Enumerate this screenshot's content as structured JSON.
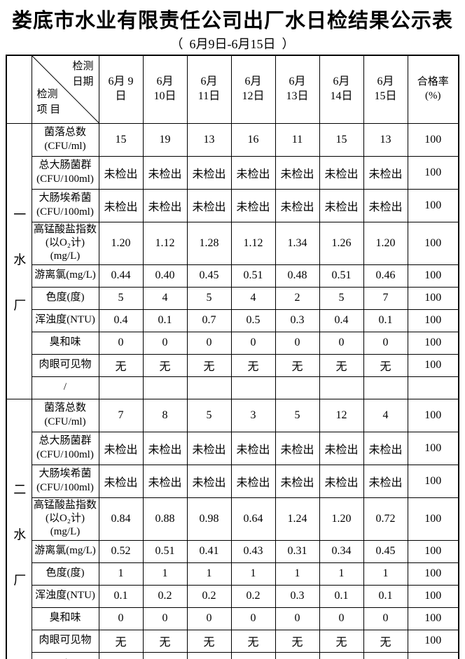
{
  "page": {
    "title": "娄底市水业有限责任公司出厂水日检结果公示表",
    "subtitle": "（  6月9日-6月15日  ）"
  },
  "table": {
    "corner_top": "检测\n日期",
    "corner_bottom": "检测\n项 目",
    "date_headers": [
      "6月 9\n日",
      "6月\n10日",
      "6月\n11日",
      "6月\n12日",
      "6月\n13日",
      "6月\n14日",
      "6月\n15日"
    ],
    "rate_header": "合格率\n(%)",
    "sections": [
      {
        "plant": "一水厂",
        "rows": [
          {
            "label": "菌落总数\n(CFU/ml)",
            "values": [
              "15",
              "19",
              "13",
              "16",
              "11",
              "15",
              "13"
            ],
            "rate": "100"
          },
          {
            "label": "总大肠菌群\n(CFU/100ml)",
            "values": [
              "未检出",
              "未检出",
              "未检出",
              "未检出",
              "未检出",
              "未检出",
              "未检出"
            ],
            "rate": "100"
          },
          {
            "label": "大肠埃希菌\n(CFU/100ml)",
            "values": [
              "未检出",
              "未检出",
              "未检出",
              "未检出",
              "未检出",
              "未检出",
              "未检出"
            ],
            "rate": "100"
          },
          {
            "label": "高锰酸盐指数\n(以O₂计)\n(mg/L)",
            "values": [
              "1.20",
              "1.12",
              "1.28",
              "1.12",
              "1.34",
              "1.26",
              "1.20"
            ],
            "rate": "100"
          },
          {
            "label": "游离氯(mg/L)",
            "values": [
              "0.44",
              "0.40",
              "0.45",
              "0.51",
              "0.48",
              "0.51",
              "0.46"
            ],
            "rate": "100"
          },
          {
            "label": "色度(度)",
            "values": [
              "5",
              "4",
              "5",
              "4",
              "2",
              "5",
              "7"
            ],
            "rate": "100"
          },
          {
            "label": "浑浊度(NTU)",
            "values": [
              "0.4",
              "0.1",
              "0.7",
              "0.5",
              "0.3",
              "0.4",
              "0.1"
            ],
            "rate": "100"
          },
          {
            "label": "臭和味",
            "values": [
              "0",
              "0",
              "0",
              "0",
              "0",
              "0",
              "0"
            ],
            "rate": "100"
          },
          {
            "label": "肉眼可见物",
            "values": [
              "无",
              "无",
              "无",
              "无",
              "无",
              "无",
              "无"
            ],
            "rate": "100"
          },
          {
            "label": "/",
            "values": [
              "",
              "",
              "",
              "",
              "",
              "",
              ""
            ],
            "rate": ""
          }
        ]
      },
      {
        "plant": "二水厂",
        "rows": [
          {
            "label": "菌落总数\n(CFU/ml)",
            "values": [
              "7",
              "8",
              "5",
              "3",
              "5",
              "12",
              "4"
            ],
            "rate": "100"
          },
          {
            "label": "总大肠菌群\n(CFU/100ml)",
            "values": [
              "未检出",
              "未检出",
              "未检出",
              "未检出",
              "未检出",
              "未检出",
              "未检出"
            ],
            "rate": "100"
          },
          {
            "label": "大肠埃希菌\n(CFU/100ml)",
            "values": [
              "未检出",
              "未检出",
              "未检出",
              "未检出",
              "未检出",
              "未检出",
              "未检出"
            ],
            "rate": "100"
          },
          {
            "label": "高锰酸盐指数\n(以O₂计)\n(mg/L)",
            "values": [
              "0.84",
              "0.88",
              "0.98",
              "0.64",
              "1.24",
              "1.20",
              "0.72"
            ],
            "rate": "100"
          },
          {
            "label": "游离氯(mg/L)",
            "values": [
              "0.52",
              "0.51",
              "0.41",
              "0.43",
              "0.31",
              "0.34",
              "0.45"
            ],
            "rate": "100"
          },
          {
            "label": "色度(度)",
            "values": [
              "1",
              "1",
              "1",
              "1",
              "1",
              "1",
              "1"
            ],
            "rate": "100"
          },
          {
            "label": "浑浊度(NTU)",
            "values": [
              "0.1",
              "0.2",
              "0.2",
              "0.2",
              "0.3",
              "0.1",
              "0.1"
            ],
            "rate": "100"
          },
          {
            "label": "臭和味",
            "values": [
              "0",
              "0",
              "0",
              "0",
              "0",
              "0",
              "0"
            ],
            "rate": "100"
          },
          {
            "label": "肉眼可见物",
            "values": [
              "无",
              "无",
              "无",
              "无",
              "无",
              "无",
              "无"
            ],
            "rate": "100"
          },
          {
            "label": "/",
            "values": [
              "",
              "",
              "",
              "",
              "",
              "",
              ""
            ],
            "rate": ""
          }
        ]
      }
    ]
  }
}
